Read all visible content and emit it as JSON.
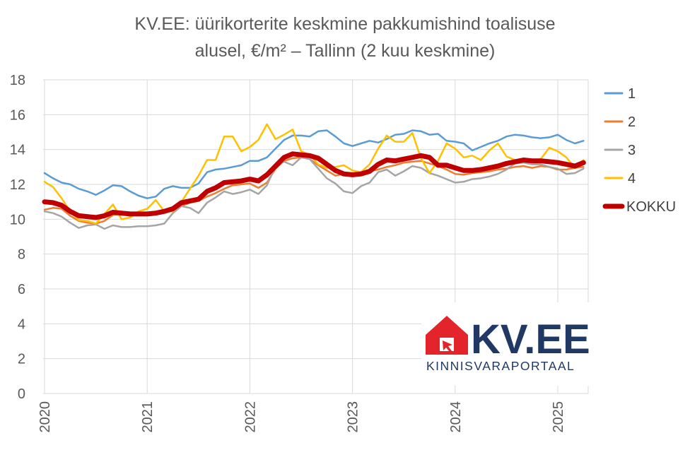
{
  "chart_data": {
    "type": "line",
    "title_line1": "KV.EE: üürikorterite keskmine pakkumishind toalisuse",
    "title_line2": "alusel, €/m² – Tallinn (2 kuu keskmine)",
    "xlabel": "",
    "ylabel": "",
    "ylim": [
      0,
      18
    ],
    "yticks": [
      "0",
      "2",
      "4",
      "6",
      "8",
      "10",
      "12",
      "14",
      "16",
      "18"
    ],
    "x_start": "2020-01",
    "x_ticks": [
      "2020",
      "2021",
      "2022",
      "2023",
      "2024",
      "2025"
    ],
    "grid": true,
    "legend_position": "right",
    "series": [
      {
        "name": "1",
        "color": "#5b9bd5",
        "values": [
          12.65,
          12.35,
          12.1,
          12.0,
          11.75,
          11.6,
          11.4,
          11.65,
          11.95,
          11.9,
          11.6,
          11.35,
          11.2,
          11.3,
          11.75,
          11.9,
          11.8,
          11.8,
          12.05,
          12.7,
          12.85,
          12.9,
          13.0,
          13.1,
          13.35,
          13.35,
          13.55,
          14.05,
          14.55,
          14.8,
          14.8,
          14.75,
          15.05,
          15.1,
          14.75,
          14.35,
          14.2,
          14.35,
          14.5,
          14.4,
          14.6,
          14.85,
          14.9,
          15.1,
          15.05,
          14.85,
          14.9,
          14.5,
          14.45,
          14.35,
          13.95,
          14.15,
          14.35,
          14.5,
          14.75,
          14.85,
          14.8,
          14.7,
          14.65,
          14.7,
          14.85,
          14.55,
          14.35,
          14.5
        ]
      },
      {
        "name": "2",
        "color": "#ed7d31",
        "values": [
          10.55,
          10.65,
          10.6,
          10.2,
          9.9,
          9.8,
          9.75,
          9.9,
          10.25,
          10.3,
          10.2,
          10.25,
          10.25,
          10.35,
          10.4,
          10.5,
          10.75,
          10.95,
          11.05,
          11.3,
          11.5,
          11.75,
          11.95,
          12.0,
          12.05,
          11.8,
          12.1,
          12.9,
          13.35,
          13.5,
          13.55,
          13.45,
          13.1,
          12.8,
          12.5,
          12.6,
          12.6,
          12.65,
          12.75,
          12.85,
          13.0,
          13.1,
          13.25,
          13.3,
          13.35,
          13.2,
          13.05,
          12.85,
          12.6,
          12.55,
          12.65,
          12.7,
          12.75,
          12.85,
          12.9,
          13.0,
          13.05,
          12.95,
          13.05,
          13.0,
          12.85,
          12.85,
          12.95,
          13.0
        ]
      },
      {
        "name": "3",
        "color": "#a5a5a5",
        "values": [
          10.45,
          10.35,
          10.15,
          9.8,
          9.5,
          9.65,
          9.7,
          9.45,
          9.65,
          9.55,
          9.55,
          9.6,
          9.6,
          9.65,
          9.75,
          10.35,
          10.75,
          10.65,
          10.35,
          10.95,
          11.25,
          11.6,
          11.45,
          11.55,
          11.7,
          11.45,
          11.95,
          13.05,
          13.3,
          13.1,
          13.55,
          13.45,
          12.9,
          12.35,
          12.05,
          11.6,
          11.5,
          11.9,
          12.1,
          12.7,
          12.85,
          12.5,
          12.75,
          13.05,
          12.95,
          12.65,
          12.5,
          12.3,
          12.1,
          12.15,
          12.3,
          12.35,
          12.45,
          12.6,
          12.85,
          13.2,
          13.25,
          13.15,
          13.15,
          13.0,
          12.9,
          12.6,
          12.65,
          12.9
        ]
      },
      {
        "name": "4",
        "color": "#ffc000",
        "values": [
          12.15,
          11.85,
          11.2,
          10.45,
          9.95,
          9.9,
          9.75,
          10.3,
          10.85,
          10.0,
          10.1,
          10.45,
          10.6,
          11.1,
          10.45,
          10.45,
          11.0,
          11.75,
          12.5,
          13.4,
          13.4,
          14.75,
          14.75,
          13.9,
          14.15,
          14.55,
          15.45,
          14.6,
          14.85,
          15.15,
          13.9,
          13.7,
          13.15,
          12.95,
          13.0,
          13.1,
          12.8,
          12.7,
          13.15,
          14.05,
          14.8,
          14.45,
          14.45,
          14.95,
          13.5,
          12.65,
          13.35,
          14.35,
          14.05,
          13.55,
          13.65,
          13.4,
          13.95,
          14.35,
          13.6,
          13.4,
          13.4,
          13.35,
          13.45,
          14.1,
          13.9,
          13.55,
          12.95,
          13.4
        ]
      },
      {
        "name": "KOKKU",
        "color": "#c00000",
        "values": [
          11.0,
          10.95,
          10.8,
          10.45,
          10.2,
          10.15,
          10.1,
          10.2,
          10.4,
          10.35,
          10.3,
          10.3,
          10.3,
          10.35,
          10.45,
          10.6,
          10.95,
          11.05,
          11.15,
          11.6,
          11.8,
          12.1,
          12.15,
          12.2,
          12.3,
          12.2,
          12.55,
          13.05,
          13.55,
          13.75,
          13.7,
          13.65,
          13.5,
          13.15,
          12.8,
          12.6,
          12.55,
          12.6,
          12.75,
          13.15,
          13.4,
          13.35,
          13.45,
          13.55,
          13.65,
          13.55,
          13.1,
          13.1,
          12.95,
          12.8,
          12.8,
          12.85,
          12.95,
          13.05,
          13.2,
          13.3,
          13.4,
          13.35,
          13.35,
          13.3,
          13.25,
          13.15,
          13.05,
          13.25
        ]
      }
    ]
  },
  "logo": {
    "brand_text": "KV.EE",
    "tagline": "KINNISVARAPORTAAL",
    "brand_color": "#e3242b",
    "text_color": "#1f3864"
  }
}
